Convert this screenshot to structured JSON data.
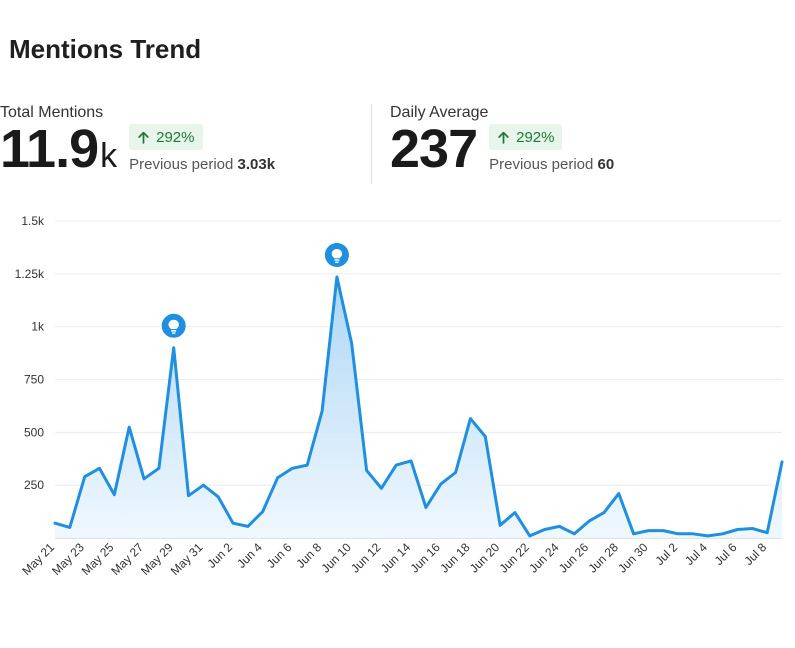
{
  "title": "Mentions Trend",
  "kpis": {
    "total": {
      "label": "Total Mentions",
      "value": "11.9",
      "unit": "k",
      "change": "292%",
      "previous_label": "Previous period",
      "previous_value": "3.03k"
    },
    "average": {
      "label": "Daily Average",
      "value": "237",
      "unit": "",
      "change": "292%",
      "previous_label": "Previous period",
      "previous_value": "60"
    }
  },
  "icons": {
    "change": "arrow-up-icon",
    "insight": "lightbulb-icon"
  },
  "colors": {
    "line": "#1f8fe0",
    "area_top": "#a9d4f5",
    "area_bottom": "#eef7fe",
    "marker": "#1f8fe0",
    "badge_bg": "#e7f5ea",
    "badge_text": "#1e7a34"
  },
  "chart_data": {
    "type": "area",
    "title": "",
    "xlabel": "",
    "ylabel": "",
    "ylim": [
      0,
      1500
    ],
    "yticks": [
      250,
      500,
      750,
      "1k",
      "1.25k",
      "1.5k"
    ],
    "ytick_values": [
      250,
      500,
      750,
      1000,
      1250,
      1500
    ],
    "grid": true,
    "x_tick_labels": [
      "May 21",
      "May 23",
      "May 25",
      "May 27",
      "May 29",
      "May 31",
      "Jun 2",
      "Jun 4",
      "Jun 6",
      "Jun 8",
      "Jun 10",
      "Jun 12",
      "Jun 14",
      "Jun 16",
      "Jun 18",
      "Jun 20",
      "Jun 22",
      "Jun 24",
      "Jun 26",
      "Jun 28",
      "Jun 30",
      "Jul 2",
      "Jul 4",
      "Jul 6",
      "Jul 8"
    ],
    "x": [
      "May 21",
      "May 22",
      "May 23",
      "May 24",
      "May 25",
      "May 26",
      "May 27",
      "May 28",
      "May 29",
      "May 30",
      "May 31",
      "Jun 1",
      "Jun 2",
      "Jun 3",
      "Jun 4",
      "Jun 5",
      "Jun 6",
      "Jun 7",
      "Jun 8",
      "Jun 9",
      "Jun 10",
      "Jun 11",
      "Jun 12",
      "Jun 13",
      "Jun 14",
      "Jun 15",
      "Jun 16",
      "Jun 17",
      "Jun 18",
      "Jun 19",
      "Jun 20",
      "Jun 21",
      "Jun 22",
      "Jun 23",
      "Jun 24",
      "Jun 25",
      "Jun 26",
      "Jun 27",
      "Jun 28",
      "Jun 29",
      "Jun 30",
      "Jul 1",
      "Jul 2",
      "Jul 3",
      "Jul 4",
      "Jul 5",
      "Jul 6",
      "Jul 7",
      "Jul 8",
      "Jul 9"
    ],
    "series": [
      {
        "values": [
          70,
          50,
          290,
          330,
          205,
          525,
          280,
          330,
          900,
          200,
          250,
          195,
          70,
          55,
          125,
          285,
          330,
          345,
          600,
          1235,
          920,
          320,
          235,
          345,
          365,
          145,
          255,
          310,
          565,
          480,
          60,
          120,
          10,
          40,
          55,
          20,
          80,
          120,
          210,
          20,
          35,
          35,
          20,
          20,
          10,
          20,
          40,
          45,
          25,
          360
        ]
      }
    ],
    "annotations": [
      {
        "x": "May 29",
        "icon": "lightbulb-icon"
      },
      {
        "x": "Jun 9",
        "icon": "lightbulb-icon"
      }
    ]
  }
}
